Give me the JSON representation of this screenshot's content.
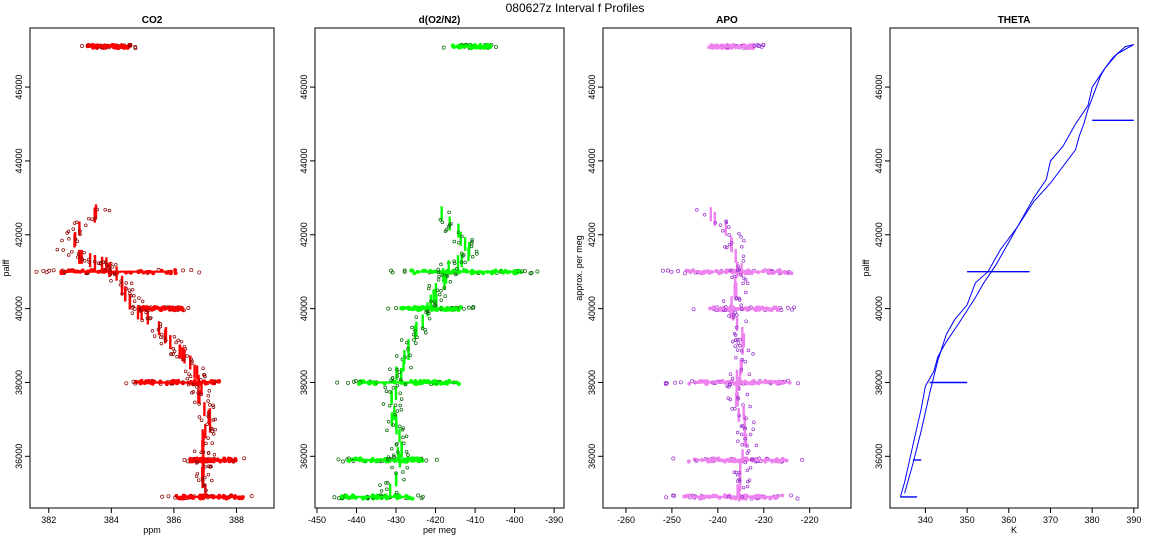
{
  "figure_title": "080627z   Interval f Profiles",
  "chart_data": [
    {
      "type": "scatter",
      "title": "CO2",
      "xlabel": "ppm",
      "ylabel": "palff",
      "color": "#ff0000",
      "outline_color": "#8b0000",
      "xlim": [
        381.4,
        389.2
      ],
      "ylim": [
        34600,
        47600
      ],
      "xticks": [
        382,
        384,
        386,
        388
      ],
      "yticks": [
        36000,
        38000,
        40000,
        42000,
        44000,
        46000
      ],
      "legs": [
        {
          "y": 47100,
          "x_min": 382.9,
          "x_max": 384.9
        },
        {
          "y": 41000,
          "x_min": 381.6,
          "x_max": 386.9
        },
        {
          "y": 40000,
          "x_min": 384.6,
          "x_max": 386.6
        },
        {
          "y": 38000,
          "x_min": 384.2,
          "x_max": 388.1
        },
        {
          "y": 35900,
          "x_min": 386.2,
          "x_max": 388.3
        },
        {
          "y": 34900,
          "x_min": 385.6,
          "x_max": 388.8
        }
      ],
      "profile": [
        {
          "x": 383.7,
          "y": 42700
        },
        {
          "x": 383.0,
          "y": 42200
        },
        {
          "x": 382.6,
          "y": 41600
        },
        {
          "x": 383.3,
          "y": 41300
        },
        {
          "x": 383.8,
          "y": 41200
        },
        {
          "x": 384.3,
          "y": 40800
        },
        {
          "x": 384.5,
          "y": 40400
        },
        {
          "x": 384.8,
          "y": 40000
        },
        {
          "x": 385.3,
          "y": 39600
        },
        {
          "x": 385.8,
          "y": 39200
        },
        {
          "x": 386.2,
          "y": 38800
        },
        {
          "x": 386.6,
          "y": 38400
        },
        {
          "x": 386.8,
          "y": 38000
        },
        {
          "x": 386.9,
          "y": 37500
        },
        {
          "x": 387.1,
          "y": 37000
        },
        {
          "x": 387.0,
          "y": 36500
        },
        {
          "x": 387.0,
          "y": 36000
        },
        {
          "x": 387.0,
          "y": 35500
        },
        {
          "x": 387.0,
          "y": 35000
        }
      ]
    },
    {
      "type": "scatter",
      "title": "d(O2/N2)",
      "xlabel": "per meg",
      "ylabel": "",
      "color": "#00ff00",
      "outline_color": "#006400",
      "xlim": [
        -450.5,
        -387.5
      ],
      "ylim": [
        34600,
        47600
      ],
      "xticks": [
        -450,
        -440,
        -430,
        -420,
        -410,
        -400,
        -390
      ],
      "yticks": [
        36000,
        38000,
        40000,
        42000,
        44000,
        46000
      ],
      "legs": [
        {
          "y": 47100,
          "x_min": -418,
          "x_max": -404
        },
        {
          "y": 41000,
          "x_min": -433,
          "x_max": -392
        },
        {
          "y": 40000,
          "x_min": -432,
          "x_max": -410
        },
        {
          "y": 38000,
          "x_min": -446,
          "x_max": -407
        },
        {
          "y": 35900,
          "x_min": -446,
          "x_max": -419
        },
        {
          "y": 34900,
          "x_min": -448,
          "x_max": -421
        }
      ],
      "profile": [
        {
          "x": -420,
          "y": 42700
        },
        {
          "x": -414,
          "y": 42000
        },
        {
          "x": -411,
          "y": 41500
        },
        {
          "x": -416,
          "y": 41200
        },
        {
          "x": -418,
          "y": 40800
        },
        {
          "x": -420,
          "y": 40300
        },
        {
          "x": -422,
          "y": 39800
        },
        {
          "x": -426,
          "y": 39200
        },
        {
          "x": -428,
          "y": 38600
        },
        {
          "x": -430,
          "y": 38000
        },
        {
          "x": -431,
          "y": 37400
        },
        {
          "x": -430,
          "y": 36800
        },
        {
          "x": -429,
          "y": 36200
        },
        {
          "x": -430,
          "y": 35600
        },
        {
          "x": -432,
          "y": 35000
        }
      ]
    },
    {
      "type": "scatter",
      "title": "APO",
      "xlabel": "",
      "ylabel": "approx. per meg",
      "color": "#ee82ee",
      "outline_color": "#9932cc",
      "xlim": [
        -265,
        -211
      ],
      "ylim": [
        34600,
        47600
      ],
      "xticks": [
        -260,
        -250,
        -240,
        -230,
        -220
      ],
      "yticks": [
        36000,
        38000,
        40000,
        42000,
        44000,
        46000
      ],
      "legs": [
        {
          "y": 47100,
          "x_min": -244,
          "x_max": -230
        },
        {
          "y": 41000,
          "x_min": -252,
          "x_max": -219
        },
        {
          "y": 40000,
          "x_min": -246,
          "x_max": -223
        },
        {
          "y": 38000,
          "x_min": -252,
          "x_max": -219
        },
        {
          "y": 35900,
          "x_min": -251,
          "x_max": -220
        },
        {
          "y": 34900,
          "x_min": -252,
          "x_max": -221
        }
      ],
      "profile": [
        {
          "x": -243,
          "y": 42700
        },
        {
          "x": -237,
          "y": 42000
        },
        {
          "x": -236,
          "y": 41400
        },
        {
          "x": -235,
          "y": 40800
        },
        {
          "x": -237,
          "y": 40200
        },
        {
          "x": -236,
          "y": 39600
        },
        {
          "x": -234,
          "y": 39000
        },
        {
          "x": -235,
          "y": 38400
        },
        {
          "x": -236,
          "y": 37800
        },
        {
          "x": -235,
          "y": 37200
        },
        {
          "x": -234,
          "y": 36600
        },
        {
          "x": -234,
          "y": 36000
        },
        {
          "x": -235,
          "y": 35400
        },
        {
          "x": -236,
          "y": 34900
        }
      ]
    },
    {
      "type": "line",
      "title": "THETA",
      "xlabel": "K",
      "ylabel": "palff",
      "color": "#0000ff",
      "xlim": [
        331.5,
        391
      ],
      "ylim": [
        34600,
        47600
      ],
      "xticks": [
        340,
        350,
        360,
        370,
        380,
        390
      ],
      "yticks": [
        36000,
        38000,
        40000,
        42000,
        44000,
        46000
      ],
      "series": [
        {
          "x": [
            335,
            337,
            339,
            341,
            343,
            345,
            347,
            350,
            352,
            355,
            358,
            362,
            366,
            370,
            372,
            374,
            376,
            377,
            378,
            379,
            380,
            381,
            382,
            383,
            385,
            388,
            390
          ],
          "y": [
            35000,
            35800,
            36700,
            37700,
            38600,
            39300,
            39700,
            40100,
            40700,
            41000,
            41600,
            42200,
            42900,
            43400,
            43700,
            44000,
            44300,
            44700,
            45000,
            45400,
            45700,
            46000,
            46300,
            46500,
            46800,
            47100,
            47150
          ]
        },
        {
          "x": [
            390,
            386,
            383,
            380,
            379,
            376,
            373,
            370,
            369,
            366,
            363,
            360,
            357,
            354,
            352,
            348,
            345,
            343,
            342,
            340,
            339,
            338,
            337,
            336,
            335,
            334
          ],
          "y": [
            47150,
            46900,
            46500,
            46000,
            45500,
            45000,
            44400,
            44000,
            43500,
            43000,
            42400,
            41800,
            41200,
            40700,
            40300,
            39600,
            39100,
            38700,
            38300,
            37900,
            37300,
            36800,
            36300,
            35800,
            35300,
            34900
          ]
        }
      ],
      "level_legs": [
        {
          "y": 45100,
          "x_min": 380,
          "x_max": 390
        },
        {
          "y": 41000,
          "x_min": 350,
          "x_max": 365
        },
        {
          "y": 38000,
          "x_min": 341,
          "x_max": 350
        },
        {
          "y": 35900,
          "x_min": 337,
          "x_max": 339
        },
        {
          "y": 34900,
          "x_min": 334,
          "x_max": 338
        }
      ]
    }
  ]
}
